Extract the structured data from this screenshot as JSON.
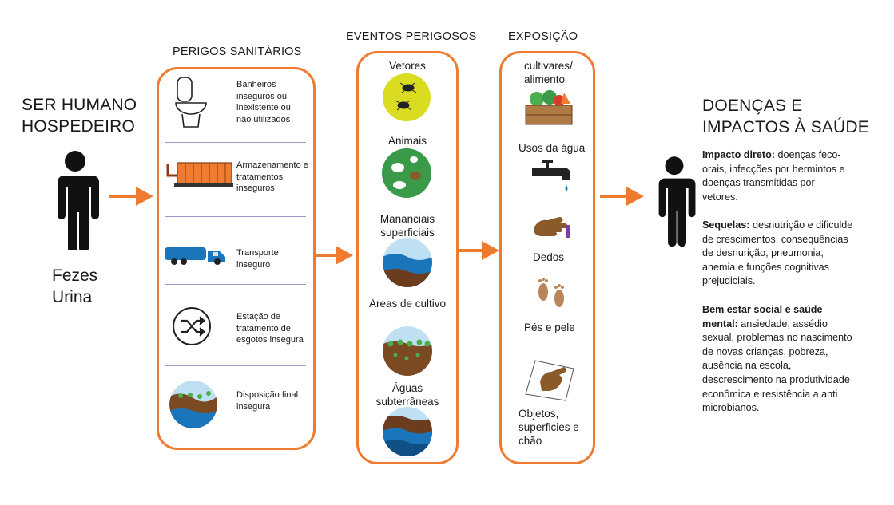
{
  "host": {
    "title_line1": "SER HUMANO",
    "title_line2": "HOSPEDEIRO",
    "item1": "Fezes",
    "item2": "Urina"
  },
  "sanitary": {
    "header": "PERIGOS SANITÁRIOS",
    "items": [
      {
        "label": "Banheiros inseguros ou inexistente ou não utilizados"
      },
      {
        "label": "Armazenamento e tratamentos inseguros"
      },
      {
        "label": "Transporte inseguro"
      },
      {
        "label": "Estação de tratamento de esgotos insegura"
      },
      {
        "label": "Disposição final insegura"
      }
    ]
  },
  "events": {
    "header": "EVENTOS PERIGOSOS",
    "items": [
      {
        "label": "Vetores"
      },
      {
        "label": "Animais"
      },
      {
        "label": "Mananciais superficiais"
      },
      {
        "label": "Àreas de cultivo"
      },
      {
        "label": "Águas subterrâneas"
      }
    ]
  },
  "exposure": {
    "header": "EXPOSIÇÃO",
    "items": [
      {
        "label": "cultivares/ alimento"
      },
      {
        "label": "Usos da água"
      },
      {
        "label": "Dedos"
      },
      {
        "label": "Pés e pele"
      },
      {
        "label": "Objetos, superficies e chão"
      }
    ]
  },
  "impacts": {
    "title_line1": "DOENÇAS E",
    "title_line2": "IMPACTOS À SAÚDE",
    "direct_bold": "Impacto direto:",
    "direct_text": " doenças feco-orais, infecções por hermintos e doenças transmitidas por vetores.",
    "sequel_bold": "Sequelas:",
    "sequel_text": " desnutrição e dificulde de crescimentos, consequências de desnurição, pneumonia, anemia e funções cognitivas prejudiciais.",
    "social_bold": "Bem estar social e saúde mental:",
    "social_text": " ansiedade, assédio sexual, problemas no nascimento de novas crianças, pobreza, ausência na escola, descrescimento na produtividade econômica e resistência a anti microbianos."
  },
  "colors": {
    "accent": "#ee7b30",
    "separator": "#9a9cc4",
    "water": "#1b75bb",
    "soil": "#6b3d1e",
    "plant": "#4cae4c"
  }
}
